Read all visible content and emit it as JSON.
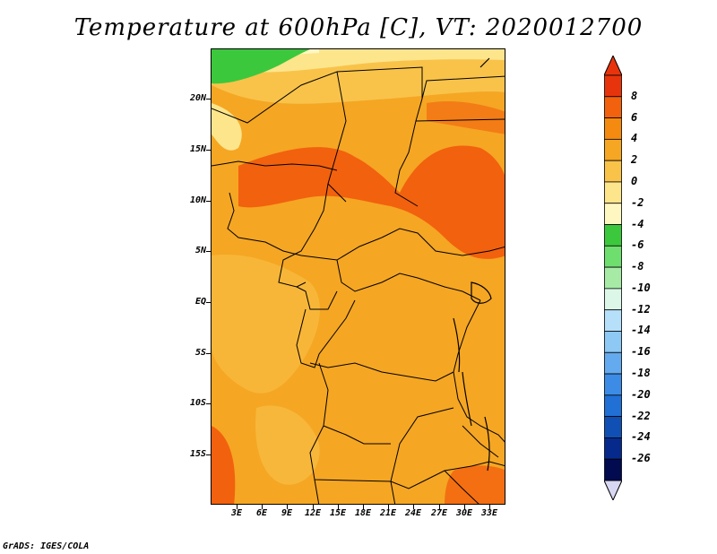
{
  "title": "Temperature at 600hPa [C], VT: 2020012700",
  "footer": "GrADS: IGES/COLA",
  "lat_labels": [
    "20N",
    "15N",
    "10N",
    "5N",
    "EQ",
    "5S",
    "10S",
    "15S"
  ],
  "lon_labels": [
    "3E",
    "6E",
    "9E",
    "12E",
    "15E",
    "18E",
    "21E",
    "24E",
    "27E",
    "30E",
    "33E"
  ],
  "colorbar": {
    "labels": [
      "8",
      "6",
      "4",
      "2",
      "0",
      "-2",
      "-4",
      "-6",
      "-8",
      "-10",
      "-12",
      "-14",
      "-16",
      "-18",
      "-20",
      "-22",
      "-24",
      "-26"
    ],
    "colors": [
      "#e8340c",
      "#f2610e",
      "#f58a10",
      "#f5a623",
      "#f9c34a",
      "#fde58c",
      "#fff7c2",
      "#3cc83c",
      "#6ede6e",
      "#a6eaa6",
      "#dcf7e8",
      "#b6e0fa",
      "#8ec8f4",
      "#64aaee",
      "#3c8ce6",
      "#2070d6",
      "#1050b4",
      "#062a8c",
      "#020a50"
    ],
    "top_arrow_color": "#e8340c",
    "bottom_arrow_color": "#d8d8f4"
  },
  "colors": {
    "base_field": "#f5a623",
    "warm_field": "#f2610e",
    "cool_field": "#f9c34a",
    "cold_field": "#fde58c",
    "green_field": "#3cc83c",
    "border": "#000000"
  }
}
